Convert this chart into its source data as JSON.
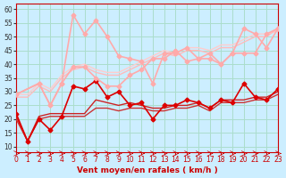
{
  "background_color": "#cceeff",
  "grid_color": "#aaddcc",
  "xlabel": "Vent moyen/en rafales ( km/h )",
  "ylabel": "",
  "xlim": [
    0,
    23
  ],
  "ylim": [
    8,
    62
  ],
  "yticks": [
    10,
    15,
    20,
    25,
    30,
    35,
    40,
    45,
    50,
    55,
    60
  ],
  "xticks": [
    0,
    1,
    2,
    3,
    4,
    5,
    6,
    7,
    8,
    9,
    10,
    11,
    12,
    13,
    14,
    15,
    16,
    17,
    18,
    19,
    20,
    21,
    22,
    23
  ],
  "series": [
    {
      "x": [
        0,
        1,
        2,
        3,
        4,
        5,
        6,
        7,
        8,
        9,
        10,
        11,
        12,
        13,
        14,
        15,
        16,
        17,
        18,
        19,
        20,
        21,
        22,
        23
      ],
      "y": [
        22,
        12,
        20,
        16,
        21,
        32,
        31,
        34,
        28,
        30,
        25,
        26,
        20,
        25,
        25,
        27,
        26,
        24,
        27,
        26,
        33,
        28,
        27,
        31
      ],
      "color": "#dd0000",
      "lw": 1.2,
      "marker": "D",
      "ms": 2.5,
      "zorder": 5
    },
    {
      "x": [
        0,
        1,
        2,
        3,
        4,
        5,
        6,
        7,
        8,
        9,
        10,
        11,
        12,
        13,
        14,
        15,
        16,
        17,
        18,
        19,
        20,
        21,
        22,
        23
      ],
      "y": [
        21,
        12,
        21,
        22,
        22,
        22,
        22,
        27,
        26,
        25,
        26,
        25,
        24,
        24,
        25,
        25,
        26,
        24,
        27,
        27,
        27,
        28,
        28,
        30
      ],
      "color": "#cc2222",
      "lw": 1.0,
      "marker": null,
      "ms": 0,
      "zorder": 4
    },
    {
      "x": [
        0,
        1,
        2,
        3,
        4,
        5,
        6,
        7,
        8,
        9,
        10,
        11,
        12,
        13,
        14,
        15,
        16,
        17,
        18,
        19,
        20,
        21,
        22,
        23
      ],
      "y": [
        20,
        12,
        20,
        21,
        21,
        21,
        21,
        24,
        24,
        23,
        24,
        24,
        23,
        23,
        24,
        24,
        25,
        23,
        26,
        26,
        26,
        27,
        27,
        29
      ],
      "color": "#cc3333",
      "lw": 1.0,
      "marker": null,
      "ms": 0,
      "zorder": 3
    },
    {
      "x": [
        0,
        2,
        3,
        4,
        5,
        6,
        7,
        8,
        9,
        10,
        11,
        12,
        13,
        14,
        15,
        16,
        17,
        18,
        19,
        20,
        21,
        22,
        23
      ],
      "y": [
        29,
        33,
        25,
        33,
        39,
        39,
        35,
        32,
        32,
        36,
        38,
        42,
        42,
        45,
        41,
        42,
        44,
        40,
        44,
        44,
        44,
        51,
        53
      ],
      "color": "#ffaaaa",
      "lw": 1.2,
      "marker": "D",
      "ms": 2.5,
      "zorder": 5
    },
    {
      "x": [
        0,
        1,
        2,
        3,
        4,
        5,
        6,
        7,
        8,
        9,
        10,
        11,
        12,
        13,
        14,
        15,
        16,
        17,
        18,
        19,
        20,
        21,
        22,
        23
      ],
      "y": [
        28,
        28,
        32,
        30,
        35,
        38,
        39,
        37,
        36,
        36,
        38,
        40,
        42,
        44,
        43,
        45,
        45,
        44,
        46,
        46,
        48,
        50,
        50,
        53
      ],
      "color": "#ffbbbb",
      "lw": 1.0,
      "marker": null,
      "ms": 0,
      "zorder": 2
    },
    {
      "x": [
        0,
        1,
        2,
        3,
        4,
        5,
        6,
        7,
        8,
        9,
        10,
        11,
        12,
        13,
        14,
        15,
        16,
        17,
        18,
        19,
        20,
        21,
        22,
        23
      ],
      "y": [
        29,
        29,
        33,
        31,
        36,
        39,
        40,
        38,
        37,
        37,
        39,
        41,
        43,
        45,
        44,
        46,
        46,
        45,
        47,
        47,
        49,
        51,
        51,
        52
      ],
      "color": "#ffcccc",
      "lw": 1.0,
      "marker": null,
      "ms": 0,
      "zorder": 1
    },
    {
      "x": [
        0,
        2,
        3,
        4,
        5,
        6,
        7,
        8,
        9,
        10,
        11,
        12,
        13,
        14,
        15,
        16,
        17,
        18,
        19,
        20,
        21,
        22,
        23
      ],
      "y": [
        29,
        33,
        25,
        33,
        58,
        51,
        56,
        50,
        43,
        42,
        41,
        33,
        44,
        44,
        46,
        42,
        42,
        40,
        44,
        53,
        51,
        46,
        53
      ],
      "color": "#ffaaaa",
      "lw": 1.2,
      "marker": "D",
      "ms": 2.5,
      "zorder": 5
    }
  ],
  "wind_arrows": true
}
